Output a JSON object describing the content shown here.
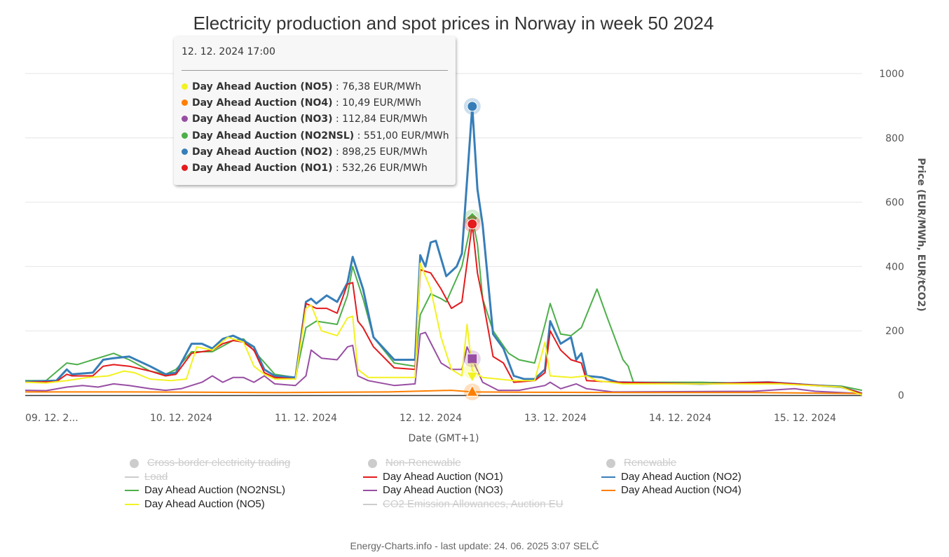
{
  "chart_data": {
    "type": "line",
    "title": "Electricity production and spot prices in Norway in week 50 2024",
    "xlabel": "Date (GMT+1)",
    "ylabel": "Price (EUR/MWh, EUR/tCO2)",
    "ylim": [
      0,
      1000
    ],
    "yticks": [
      "0",
      "200",
      "400",
      "600",
      "800",
      "1000"
    ],
    "ytick_values": [
      0,
      200,
      400,
      600,
      800,
      1000
    ],
    "xticks": [
      "09. 12. 2...",
      "10. 12. 2024",
      "11. 12. 2024",
      "12. 12. 2024",
      "13. 12. 2024",
      "14. 12. 2024",
      "15. 12. 2024"
    ],
    "xlim_hours": [
      0,
      161
    ],
    "grid": true,
    "legend_placement": "bottom",
    "hover_hour": 86,
    "series": [
      {
        "name": "Day Ahead Auction (NO2NSL)",
        "color": "#4daf4a",
        "marker": "diamond",
        "points": [
          [
            0,
            45
          ],
          [
            4,
            45
          ],
          [
            8,
            100
          ],
          [
            10,
            95
          ],
          [
            13,
            110
          ],
          [
            17,
            130
          ],
          [
            20,
            110
          ],
          [
            24,
            75
          ],
          [
            27,
            65
          ],
          [
            29,
            80
          ],
          [
            32,
            135
          ],
          [
            36,
            135
          ],
          [
            40,
            170
          ],
          [
            42,
            175
          ],
          [
            45,
            120
          ],
          [
            48,
            65
          ],
          [
            52,
            55
          ],
          [
            54,
            210
          ],
          [
            56,
            230
          ],
          [
            60,
            220
          ],
          [
            62,
            310
          ],
          [
            63,
            400
          ],
          [
            65,
            300
          ],
          [
            67,
            180
          ],
          [
            71,
            100
          ],
          [
            75,
            90
          ],
          [
            76,
            250
          ],
          [
            78,
            315
          ],
          [
            80,
            300
          ],
          [
            81,
            290
          ],
          [
            84,
            400
          ],
          [
            86,
            551
          ],
          [
            87,
            470
          ],
          [
            88,
            300
          ],
          [
            90,
            200
          ],
          [
            93,
            130
          ],
          [
            95,
            110
          ],
          [
            98,
            100
          ],
          [
            100,
            220
          ],
          [
            101,
            285
          ],
          [
            103,
            190
          ],
          [
            105,
            185
          ],
          [
            107,
            210
          ],
          [
            110,
            330
          ],
          [
            112,
            240
          ],
          [
            115,
            110
          ],
          [
            116,
            90
          ],
          [
            117,
            40
          ],
          [
            130,
            40
          ],
          [
            145,
            35
          ],
          [
            157,
            28
          ],
          [
            161,
            15
          ]
        ]
      },
      {
        "name": "Day Ahead Auction (NO2)",
        "color": "#377eb8",
        "marker": "circle",
        "points": [
          [
            0,
            42
          ],
          [
            6,
            45
          ],
          [
            8,
            80
          ],
          [
            9,
            65
          ],
          [
            13,
            70
          ],
          [
            15,
            110
          ],
          [
            17,
            115
          ],
          [
            20,
            120
          ],
          [
            24,
            90
          ],
          [
            27,
            65
          ],
          [
            29,
            70
          ],
          [
            32,
            160
          ],
          [
            34,
            160
          ],
          [
            36,
            145
          ],
          [
            38,
            175
          ],
          [
            40,
            185
          ],
          [
            42,
            170
          ],
          [
            44,
            150
          ],
          [
            46,
            80
          ],
          [
            48,
            60
          ],
          [
            52,
            55
          ],
          [
            54,
            290
          ],
          [
            55,
            300
          ],
          [
            56,
            285
          ],
          [
            58,
            310
          ],
          [
            60,
            290
          ],
          [
            62,
            350
          ],
          [
            63,
            430
          ],
          [
            65,
            330
          ],
          [
            67,
            180
          ],
          [
            71,
            110
          ],
          [
            75,
            110
          ],
          [
            76,
            435
          ],
          [
            77,
            400
          ],
          [
            78,
            475
          ],
          [
            79,
            480
          ],
          [
            81,
            370
          ],
          [
            83,
            400
          ],
          [
            84,
            440
          ],
          [
            86,
            898
          ],
          [
            87,
            640
          ],
          [
            88,
            530
          ],
          [
            90,
            190
          ],
          [
            92,
            145
          ],
          [
            94,
            60
          ],
          [
            96,
            50
          ],
          [
            98,
            50
          ],
          [
            100,
            80
          ],
          [
            101,
            230
          ],
          [
            103,
            160
          ],
          [
            105,
            180
          ],
          [
            106,
            110
          ],
          [
            107,
            130
          ],
          [
            108,
            60
          ],
          [
            111,
            55
          ],
          [
            114,
            40
          ],
          [
            130,
            35
          ],
          [
            143,
            40
          ],
          [
            157,
            25
          ],
          [
            161,
            5
          ]
        ]
      },
      {
        "name": "Day Ahead Auction (NO1)",
        "color": "#e41a1c",
        "marker": "circle",
        "points": [
          [
            0,
            40
          ],
          [
            6,
            42
          ],
          [
            8,
            65
          ],
          [
            9,
            60
          ],
          [
            13,
            60
          ],
          [
            15,
            90
          ],
          [
            17,
            95
          ],
          [
            20,
            90
          ],
          [
            24,
            75
          ],
          [
            27,
            60
          ],
          [
            29,
            65
          ],
          [
            32,
            130
          ],
          [
            34,
            135
          ],
          [
            36,
            140
          ],
          [
            38,
            160
          ],
          [
            40,
            170
          ],
          [
            42,
            165
          ],
          [
            44,
            140
          ],
          [
            46,
            70
          ],
          [
            48,
            55
          ],
          [
            52,
            50
          ],
          [
            54,
            285
          ],
          [
            56,
            270
          ],
          [
            58,
            270
          ],
          [
            60,
            255
          ],
          [
            62,
            345
          ],
          [
            63,
            350
          ],
          [
            64,
            230
          ],
          [
            65,
            210
          ],
          [
            67,
            150
          ],
          [
            71,
            85
          ],
          [
            75,
            80
          ],
          [
            76,
            390
          ],
          [
            78,
            380
          ],
          [
            80,
            330
          ],
          [
            82,
            270
          ],
          [
            84,
            290
          ],
          [
            86,
            532
          ],
          [
            87,
            380
          ],
          [
            88,
            300
          ],
          [
            90,
            120
          ],
          [
            92,
            100
          ],
          [
            94,
            40
          ],
          [
            98,
            45
          ],
          [
            100,
            70
          ],
          [
            101,
            200
          ],
          [
            103,
            140
          ],
          [
            105,
            110
          ],
          [
            107,
            100
          ],
          [
            108,
            45
          ],
          [
            114,
            40
          ],
          [
            130,
            35
          ],
          [
            143,
            40
          ],
          [
            157,
            25
          ],
          [
            161,
            5
          ]
        ]
      },
      {
        "name": "Day Ahead Auction (NO3)",
        "color": "#984ea3",
        "marker": "square",
        "points": [
          [
            0,
            15
          ],
          [
            4,
            14
          ],
          [
            8,
            25
          ],
          [
            11,
            30
          ],
          [
            14,
            25
          ],
          [
            17,
            35
          ],
          [
            20,
            30
          ],
          [
            24,
            20
          ],
          [
            27,
            15
          ],
          [
            30,
            20
          ],
          [
            34,
            40
          ],
          [
            36,
            60
          ],
          [
            38,
            40
          ],
          [
            40,
            55
          ],
          [
            42,
            55
          ],
          [
            44,
            40
          ],
          [
            46,
            60
          ],
          [
            48,
            35
          ],
          [
            52,
            30
          ],
          [
            54,
            60
          ],
          [
            55,
            140
          ],
          [
            57,
            115
          ],
          [
            60,
            110
          ],
          [
            62,
            150
          ],
          [
            63,
            155
          ],
          [
            64,
            60
          ],
          [
            66,
            45
          ],
          [
            71,
            30
          ],
          [
            75,
            35
          ],
          [
            76,
            190
          ],
          [
            77,
            195
          ],
          [
            80,
            100
          ],
          [
            82,
            80
          ],
          [
            84,
            80
          ],
          [
            85,
            150
          ],
          [
            86,
            113
          ],
          [
            88,
            40
          ],
          [
            91,
            15
          ],
          [
            95,
            15
          ],
          [
            100,
            30
          ],
          [
            101,
            40
          ],
          [
            103,
            20
          ],
          [
            106,
            35
          ],
          [
            108,
            20
          ],
          [
            113,
            10
          ],
          [
            140,
            12
          ],
          [
            148,
            20
          ],
          [
            152,
            12
          ],
          [
            161,
            5
          ]
        ]
      },
      {
        "name": "Day Ahead Auction (NO4)",
        "color": "#ff7f00",
        "marker": "triangle-up",
        "points": [
          [
            0,
            10
          ],
          [
            20,
            10
          ],
          [
            50,
            8
          ],
          [
            70,
            10
          ],
          [
            82,
            15
          ],
          [
            86,
            10
          ],
          [
            100,
            9
          ],
          [
            120,
            8
          ],
          [
            140,
            8
          ],
          [
            161,
            5
          ]
        ]
      },
      {
        "name": "Day Ahead Auction (NO5)",
        "color": "#f2f221",
        "marker": "triangle-down",
        "points": [
          [
            0,
            40
          ],
          [
            4,
            38
          ],
          [
            8,
            45
          ],
          [
            12,
            55
          ],
          [
            16,
            60
          ],
          [
            19,
            75
          ],
          [
            21,
            70
          ],
          [
            24,
            50
          ],
          [
            28,
            45
          ],
          [
            31,
            50
          ],
          [
            33,
            150
          ],
          [
            36,
            140
          ],
          [
            39,
            180
          ],
          [
            42,
            165
          ],
          [
            44,
            90
          ],
          [
            46,
            65
          ],
          [
            48,
            50
          ],
          [
            52,
            50
          ],
          [
            54,
            270
          ],
          [
            55,
            280
          ],
          [
            57,
            200
          ],
          [
            60,
            185
          ],
          [
            62,
            240
          ],
          [
            63,
            245
          ],
          [
            64,
            80
          ],
          [
            66,
            55
          ],
          [
            75,
            55
          ],
          [
            76,
            410
          ],
          [
            78,
            330
          ],
          [
            80,
            180
          ],
          [
            82,
            80
          ],
          [
            84,
            60
          ],
          [
            85,
            220
          ],
          [
            86,
            76
          ],
          [
            88,
            55
          ],
          [
            91,
            50
          ],
          [
            94,
            45
          ],
          [
            98,
            45
          ],
          [
            100,
            165
          ],
          [
            101,
            60
          ],
          [
            105,
            55
          ],
          [
            108,
            60
          ],
          [
            110,
            45
          ],
          [
            115,
            35
          ],
          [
            130,
            35
          ],
          [
            145,
            35
          ],
          [
            157,
            25
          ],
          [
            161,
            0
          ]
        ]
      }
    ]
  },
  "legend": {
    "items": [
      {
        "label": "Cross-border electricity trading",
        "color": "#cccccc",
        "hidden": true,
        "kind": "dot"
      },
      {
        "label": "Non-Renewable",
        "color": "#cccccc",
        "hidden": true,
        "kind": "dot"
      },
      {
        "label": "Renewable",
        "color": "#cccccc",
        "hidden": true,
        "kind": "dot"
      },
      {
        "label": "Load",
        "color": "#cccccc",
        "hidden": true,
        "kind": "line"
      },
      {
        "label": "Day Ahead Auction (NO1)",
        "color": "#e41a1c",
        "hidden": false,
        "kind": "line"
      },
      {
        "label": "Day Ahead Auction (NO2)",
        "color": "#377eb8",
        "hidden": false,
        "kind": "line"
      },
      {
        "label": "Day Ahead Auction (NO2NSL)",
        "color": "#4daf4a",
        "hidden": false,
        "kind": "line"
      },
      {
        "label": "Day Ahead Auction (NO3)",
        "color": "#984ea3",
        "hidden": false,
        "kind": "line"
      },
      {
        "label": "Day Ahead Auction (NO4)",
        "color": "#ff7f00",
        "hidden": false,
        "kind": "line"
      },
      {
        "label": "Day Ahead Auction (NO5)",
        "color": "#f2f221",
        "hidden": false,
        "kind": "line"
      },
      {
        "label": "CO2 Emission Allowances, Auction EU",
        "color": "#cccccc",
        "hidden": true,
        "kind": "line"
      }
    ]
  },
  "tooltip": {
    "date": "12. 12. 2024 17:00",
    "rows": [
      {
        "name": "Day Ahead Auction (NO5)",
        "value": ": 76,38 EUR/MWh",
        "color": "#f2f221"
      },
      {
        "name": "Day Ahead Auction (NO4)",
        "value": ": 10,49 EUR/MWh",
        "color": "#ff7f00"
      },
      {
        "name": "Day Ahead Auction (NO3)",
        "value": ": 112,84 EUR/MWh",
        "color": "#984ea3"
      },
      {
        "name": "Day Ahead Auction (NO2NSL)",
        "value": ": 551,00 EUR/MWh",
        "color": "#4daf4a"
      },
      {
        "name": "Day Ahead Auction (NO2)",
        "value": ": 898,25 EUR/MWh",
        "color": "#377eb8"
      },
      {
        "name": "Day Ahead Auction (NO1)",
        "value": ": 532,26 EUR/MWh",
        "color": "#e41a1c"
      }
    ]
  },
  "footer": "Energy-Charts.info - last update: 24. 06. 2025 3:07 SELČ"
}
